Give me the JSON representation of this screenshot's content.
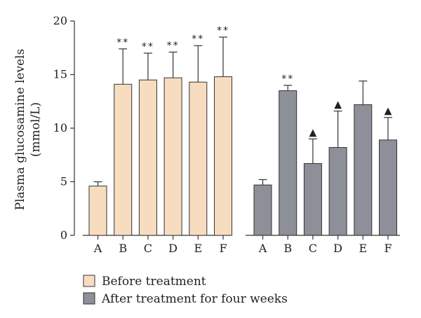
{
  "chart_data": {
    "type": "bar",
    "title": "",
    "ylabel_lines": [
      "Plasma glucosamine levels",
      "(mmol/L)"
    ],
    "xlabel": "",
    "ylim": [
      0,
      20
    ],
    "yticks": [
      0,
      5,
      10,
      15,
      20
    ],
    "categories": [
      "A",
      "B",
      "C",
      "D",
      "E",
      "F"
    ],
    "legend_position": "bottom-left",
    "series": [
      {
        "name": "Before treatment",
        "color": "#f7dcc0",
        "values": [
          4.6,
          14.1,
          14.5,
          14.7,
          14.3,
          14.8
        ],
        "errors": [
          0.4,
          3.3,
          2.5,
          2.4,
          3.4,
          3.7
        ],
        "marks": [
          "",
          "**",
          "**",
          "**",
          "**",
          "**"
        ]
      },
      {
        "name": "After treatment for four weeks",
        "color": "#8d8f99",
        "values": [
          4.7,
          13.5,
          6.7,
          8.2,
          12.2,
          8.9
        ],
        "errors": [
          0.5,
          0.5,
          2.3,
          3.4,
          2.2,
          2.1
        ],
        "marks": [
          "",
          "**",
          "▲",
          "▲",
          "",
          "▲"
        ]
      }
    ]
  }
}
